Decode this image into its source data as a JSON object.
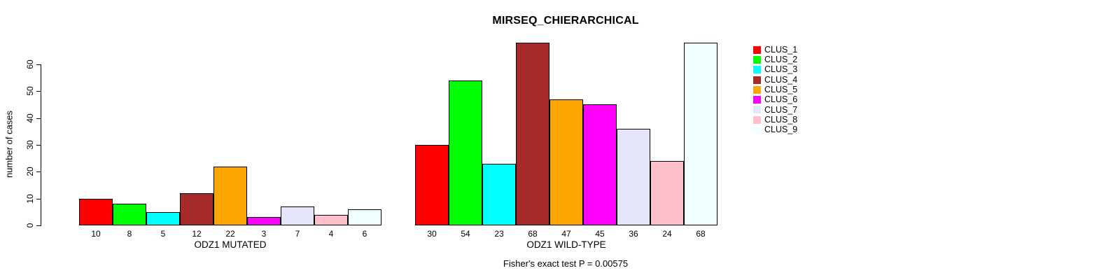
{
  "chart_data": {
    "type": "bar",
    "title": "MIRSEQ_CHIERARCHICAL",
    "ylabel": "number of cases",
    "ylim": [
      0,
      68
    ],
    "yticks": [
      0,
      10,
      20,
      30,
      40,
      50,
      60
    ],
    "grid": false,
    "legend_position": "right",
    "series_names": [
      "CLUS_1",
      "CLUS_2",
      "CLUS_3",
      "CLUS_4",
      "CLUS_5",
      "CLUS_6",
      "CLUS_7",
      "CLUS_8",
      "CLUS_9"
    ],
    "colors": [
      "#ff0000",
      "#00ff00",
      "#00ffff",
      "#a52a2a",
      "#ffa500",
      "#ff00ff",
      "#e6e6fa",
      "#ffc0cb",
      "#f0ffff"
    ],
    "groups": [
      {
        "label": "ODZ1 MUTATED",
        "values": [
          10,
          8,
          5,
          12,
          22,
          3,
          7,
          4,
          6
        ]
      },
      {
        "label": "ODZ1 WILD-TYPE",
        "values": [
          30,
          54,
          23,
          68,
          47,
          45,
          36,
          24,
          68
        ]
      }
    ],
    "annotation": "Fisher's exact test P = 0.00575"
  }
}
